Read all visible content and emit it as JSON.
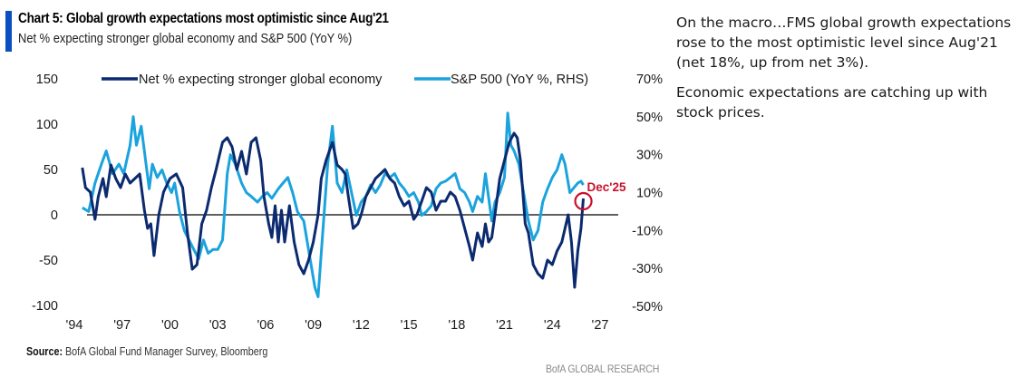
{
  "header": {
    "title": "Chart 5: Global growth expectations most optimistic since Aug'21",
    "subtitle": "Net % expecting stronger global economy and S&P 500 (YoY %)"
  },
  "footer": {
    "source_label": "Source:",
    "source_text": " BofA Global Fund Manager Survey, Bloomberg",
    "brand": "BofA GLOBAL RESEARCH"
  },
  "commentary": {
    "paragraphs": [
      "On the macro…FMS global growth expectations rose to the most optimistic level since Aug'21 (net 18%, up from net 3%).",
      "Economic expectations are catching up with stock prices."
    ]
  },
  "colors": {
    "accent": "#0a4fbf",
    "net_series": "#0b2a6f",
    "sp_series": "#1ba3dd",
    "annotation": "#c8102e"
  },
  "chart_data": {
    "type": "line",
    "title": "Chart 5: Global growth expectations most optimistic since Aug'21",
    "subtitle": "Net % expecting stronger global economy and S&P 500 (YoY %)",
    "xlabel": "",
    "ylabel": "",
    "y2label": "",
    "xlim": [
      1994,
      2027
    ],
    "ylim": [
      -100,
      150
    ],
    "y2lim": [
      -50,
      70
    ],
    "x_ticks": [
      1994,
      1997,
      2000,
      2003,
      2006,
      2009,
      2012,
      2015,
      2018,
      2021,
      2024,
      2027
    ],
    "x_tick_labels": [
      "'94",
      "'97",
      "'00",
      "'03",
      "'06",
      "'09",
      "'12",
      "'15",
      "'18",
      "'21",
      "'24",
      "'27"
    ],
    "y_ticks": [
      150,
      100,
      50,
      0,
      -50,
      -100
    ],
    "y_tick_labels": [
      "150",
      "100",
      "50",
      "0",
      "-50",
      "-100"
    ],
    "y2_ticks": [
      70,
      50,
      30,
      10,
      -10,
      -30,
      -50
    ],
    "y2_tick_labels": [
      "70%",
      "50%",
      "30%",
      "10%",
      "-10%",
      "-30%",
      "-50%"
    ],
    "grid": false,
    "zero_line": true,
    "legend_position": "top",
    "series": [
      {
        "name": "Net % expecting stronger global economy",
        "axis": "left",
        "x": [
          1994.5,
          1994.7,
          1995,
          1995.3,
          1995.5,
          1995.8,
          1996,
          1996.3,
          1996.6,
          1996.9,
          1997.2,
          1997.5,
          1997.8,
          1998.1,
          1998.4,
          1998.6,
          1998.8,
          1999,
          1999.3,
          1999.6,
          2000,
          2000.4,
          2000.8,
          2001.1,
          2001.4,
          2001.7,
          2002,
          2002.3,
          2002.6,
          2002.9,
          2003.1,
          2003.3,
          2003.6,
          2003.9,
          2004.2,
          2004.5,
          2004.8,
          2005.1,
          2005.4,
          2005.7,
          2005.9,
          2006.2,
          2006.4,
          2006.6,
          2006.8,
          2007,
          2007.2,
          2007.5,
          2007.8,
          2008.1,
          2008.4,
          2008.7,
          2009,
          2009.3,
          2009.5,
          2009.8,
          2010,
          2010.2,
          2010.5,
          2010.8,
          2011,
          2011.2,
          2011.5,
          2011.8,
          2012,
          2012.3,
          2012.6,
          2012.9,
          2013.2,
          2013.5,
          2013.8,
          2014.1,
          2014.4,
          2014.7,
          2015,
          2015.3,
          2015.5,
          2015.8,
          2016.1,
          2016.4,
          2016.7,
          2017,
          2017.3,
          2017.6,
          2017.9,
          2018.2,
          2018.5,
          2018.8,
          2019,
          2019.3,
          2019.6,
          2019.8,
          2020,
          2020.2,
          2020.4,
          2020.7,
          2021,
          2021.3,
          2021.6,
          2021.8,
          2022,
          2022.3,
          2022.5,
          2022.8,
          2023.1,
          2023.4,
          2023.7,
          2024,
          2024.3,
          2024.6,
          2024.8,
          2025,
          2025.2,
          2025.4,
          2025.6,
          2025.8,
          2025.95
        ],
        "values": [
          52,
          30,
          25,
          -5,
          20,
          40,
          20,
          55,
          40,
          30,
          45,
          35,
          40,
          45,
          5,
          -15,
          -10,
          -45,
          0,
          25,
          40,
          45,
          30,
          -20,
          -60,
          -55,
          -10,
          5,
          30,
          50,
          65,
          80,
          85,
          75,
          50,
          70,
          45,
          80,
          85,
          60,
          20,
          -10,
          -25,
          10,
          -30,
          5,
          -30,
          10,
          -30,
          -55,
          -65,
          -50,
          -30,
          0,
          40,
          60,
          70,
          80,
          55,
          50,
          45,
          20,
          -15,
          -10,
          0,
          20,
          30,
          40,
          45,
          50,
          40,
          35,
          20,
          10,
          15,
          -5,
          0,
          15,
          30,
          25,
          5,
          15,
          15,
          25,
          20,
          5,
          -15,
          -35,
          -50,
          -20,
          -35,
          -10,
          -30,
          -25,
          0,
          40,
          60,
          80,
          90,
          85,
          60,
          -10,
          -20,
          -55,
          -65,
          -70,
          -50,
          -55,
          -40,
          -30,
          -15,
          0,
          -30,
          -80,
          -40,
          -15,
          18
        ]
      },
      {
        "name": "S&P 500 (YoY %, RHS)",
        "axis": "right",
        "x": [
          1994.5,
          1994.9,
          1995.3,
          1995.7,
          1996,
          1996.4,
          1996.8,
          1997.1,
          1997.5,
          1997.7,
          1997.9,
          1998.2,
          1998.5,
          1998.7,
          1998.9,
          1999.2,
          1999.5,
          1999.8,
          2000.1,
          2000.3,
          2000.6,
          2000.9,
          2001.2,
          2001.5,
          2001.8,
          2002.1,
          2002.4,
          2002.7,
          2003,
          2003.3,
          2003.6,
          2003.8,
          2004.1,
          2004.5,
          2004.8,
          2005.1,
          2005.5,
          2005.8,
          2006.1,
          2006.4,
          2006.8,
          2007.1,
          2007.4,
          2007.7,
          2008,
          2008.4,
          2008.8,
          2009.1,
          2009.3,
          2009.6,
          2009.9,
          2010.2,
          2010.5,
          2010.8,
          2011.1,
          2011.4,
          2011.7,
          2012,
          2012.3,
          2012.6,
          2012.9,
          2013.2,
          2013.5,
          2013.8,
          2014.1,
          2014.4,
          2014.7,
          2015,
          2015.3,
          2015.6,
          2015.8,
          2016.1,
          2016.4,
          2016.7,
          2017,
          2017.3,
          2017.6,
          2017.9,
          2018.2,
          2018.5,
          2018.8,
          2019,
          2019.3,
          2019.6,
          2019.8,
          2020.2,
          2020.4,
          2020.7,
          2021,
          2021.2,
          2021.4,
          2021.6,
          2021.9,
          2022.2,
          2022.5,
          2022.8,
          2023.1,
          2023.4,
          2023.7,
          2024,
          2024.3,
          2024.6,
          2024.8,
          2025.1,
          2025.3,
          2025.6,
          2025.8,
          2025.95
        ],
        "values": [
          2,
          0,
          15,
          25,
          32,
          20,
          25,
          20,
          35,
          50,
          35,
          45,
          25,
          12,
          25,
          18,
          22,
          15,
          10,
          15,
          0,
          -10,
          -15,
          -20,
          -25,
          -15,
          -22,
          -20,
          -20,
          -15,
          20,
          30,
          25,
          15,
          10,
          8,
          5,
          8,
          10,
          7,
          12,
          15,
          18,
          10,
          0,
          -5,
          -25,
          -40,
          -45,
          -10,
          25,
          45,
          15,
          10,
          22,
          10,
          -2,
          5,
          8,
          14,
          10,
          14,
          20,
          18,
          20,
          15,
          12,
          8,
          10,
          5,
          -2,
          0,
          3,
          12,
          15,
          16,
          18,
          20,
          12,
          10,
          5,
          0,
          8,
          5,
          20,
          -5,
          5,
          10,
          18,
          52,
          35,
          32,
          25,
          10,
          -5,
          -15,
          -10,
          5,
          12,
          18,
          22,
          30,
          25,
          10,
          12,
          15,
          16,
          14
        ]
      }
    ],
    "annotations": [
      {
        "label": "Dec'25",
        "x": 2025.95,
        "y": 18,
        "axis": "left",
        "marker": "circle"
      }
    ]
  }
}
